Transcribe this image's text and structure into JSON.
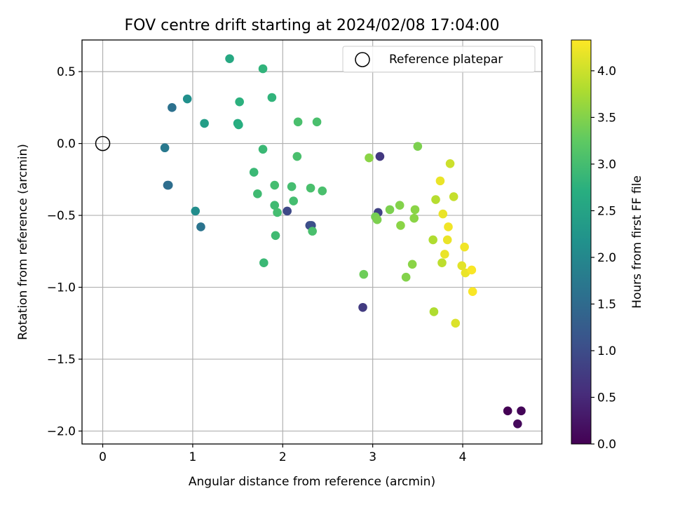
{
  "chart_data": {
    "type": "scatter",
    "title": "FOV centre drift starting at 2024/02/08 17:04:00",
    "xlabel": "Angular distance from reference (arcmin)",
    "ylabel": "Rotation from reference (arcmin)",
    "xlim": [
      -0.23,
      4.88
    ],
    "ylim": [
      -2.09,
      0.72
    ],
    "xticks": [
      0,
      1,
      2,
      3,
      4
    ],
    "xtick_labels": [
      "0",
      "1",
      "2",
      "3",
      "4"
    ],
    "yticks": [
      0.5,
      0.0,
      -0.5,
      -1.0,
      -1.5,
      -2.0
    ],
    "ytick_labels": [
      "0.5",
      "0.0",
      "−0.5",
      "−1.0",
      "−1.5",
      "−2.0"
    ],
    "grid": true,
    "legend": {
      "placement": "top-right",
      "entries": [
        {
          "label": "Reference platepar",
          "marker": "open-circle"
        }
      ]
    },
    "reference_point": {
      "x": 0,
      "y": 0
    },
    "colorbar": {
      "label": "Hours from first FF file",
      "colormap": "viridis",
      "range": [
        0,
        4.33
      ],
      "ticks": [
        0.0,
        0.5,
        1.0,
        1.5,
        2.0,
        2.5,
        3.0,
        3.5,
        4.0
      ],
      "tick_labels": [
        "0.0",
        "0.5",
        "1.0",
        "1.5",
        "2.0",
        "2.5",
        "3.0",
        "3.5",
        "4.0"
      ]
    },
    "points": [
      {
        "x": 4.5,
        "y": -1.86,
        "c": 0.0
      },
      {
        "x": 4.65,
        "y": -1.86,
        "c": 0.05
      },
      {
        "x": 4.61,
        "y": -1.95,
        "c": 0.1
      },
      {
        "x": 3.08,
        "y": -0.09,
        "c": 0.7
      },
      {
        "x": 2.89,
        "y": -1.14,
        "c": 0.75
      },
      {
        "x": 3.06,
        "y": -0.48,
        "c": 0.85
      },
      {
        "x": 2.05,
        "y": -0.47,
        "c": 0.95
      },
      {
        "x": 2.3,
        "y": -0.57,
        "c": 1.0
      },
      {
        "x": 2.32,
        "y": -0.57,
        "c": 1.05
      },
      {
        "x": 0.72,
        "y": -0.29,
        "c": 1.5
      },
      {
        "x": 0.73,
        "y": -0.29,
        "c": 1.55
      },
      {
        "x": 0.77,
        "y": 0.25,
        "c": 1.6
      },
      {
        "x": 1.09,
        "y": -0.58,
        "c": 1.65
      },
      {
        "x": 0.69,
        "y": -0.03,
        "c": 1.75
      },
      {
        "x": 1.03,
        "y": -0.47,
        "c": 2.1
      },
      {
        "x": 0.94,
        "y": 0.31,
        "c": 2.15
      },
      {
        "x": 1.13,
        "y": 0.14,
        "c": 2.4
      },
      {
        "x": 1.41,
        "y": 0.59,
        "c": 2.6
      },
      {
        "x": 1.5,
        "y": 0.14,
        "c": 2.65
      },
      {
        "x": 1.51,
        "y": 0.13,
        "c": 2.7
      },
      {
        "x": 1.52,
        "y": 0.29,
        "c": 2.75
      },
      {
        "x": 1.78,
        "y": 0.52,
        "c": 2.8
      },
      {
        "x": 1.88,
        "y": 0.32,
        "c": 2.8
      },
      {
        "x": 1.78,
        "y": -0.04,
        "c": 2.9
      },
      {
        "x": 1.68,
        "y": -0.2,
        "c": 2.9
      },
      {
        "x": 1.72,
        "y": -0.35,
        "c": 2.95
      },
      {
        "x": 1.79,
        "y": -0.83,
        "c": 2.9
      },
      {
        "x": 1.91,
        "y": -0.43,
        "c": 2.95
      },
      {
        "x": 1.92,
        "y": -0.64,
        "c": 2.95
      },
      {
        "x": 1.91,
        "y": -0.29,
        "c": 3.0
      },
      {
        "x": 1.94,
        "y": -0.48,
        "c": 3.0
      },
      {
        "x": 2.1,
        "y": -0.3,
        "c": 3.0
      },
      {
        "x": 2.12,
        "y": -0.4,
        "c": 3.0
      },
      {
        "x": 2.16,
        "y": -0.09,
        "c": 3.05
      },
      {
        "x": 2.17,
        "y": 0.15,
        "c": 3.05
      },
      {
        "x": 2.31,
        "y": -0.31,
        "c": 3.05
      },
      {
        "x": 2.33,
        "y": -0.61,
        "c": 3.05
      },
      {
        "x": 2.38,
        "y": 0.15,
        "c": 3.05
      },
      {
        "x": 2.44,
        "y": -0.33,
        "c": 3.05
      },
      {
        "x": 2.9,
        "y": -0.91,
        "c": 3.35
      },
      {
        "x": 2.96,
        "y": -0.1,
        "c": 3.55
      },
      {
        "x": 3.03,
        "y": -0.51,
        "c": 3.4
      },
      {
        "x": 3.05,
        "y": -0.53,
        "c": 3.45
      },
      {
        "x": 3.19,
        "y": -0.46,
        "c": 3.45
      },
      {
        "x": 3.3,
        "y": -0.43,
        "c": 3.5
      },
      {
        "x": 3.31,
        "y": -0.57,
        "c": 3.55
      },
      {
        "x": 3.37,
        "y": -0.93,
        "c": 3.5
      },
      {
        "x": 3.44,
        "y": -0.84,
        "c": 3.55
      },
      {
        "x": 3.46,
        "y": -0.52,
        "c": 3.55
      },
      {
        "x": 3.47,
        "y": -0.46,
        "c": 3.55
      },
      {
        "x": 3.5,
        "y": -0.02,
        "c": 3.45
      },
      {
        "x": 3.67,
        "y": -0.67,
        "c": 3.8
      },
      {
        "x": 3.68,
        "y": -1.17,
        "c": 3.8
      },
      {
        "x": 3.7,
        "y": -0.39,
        "c": 3.85
      },
      {
        "x": 3.75,
        "y": -0.26,
        "c": 4.2
      },
      {
        "x": 3.77,
        "y": -0.83,
        "c": 3.9
      },
      {
        "x": 3.78,
        "y": -0.49,
        "c": 4.2
      },
      {
        "x": 3.8,
        "y": -0.77,
        "c": 4.2
      },
      {
        "x": 3.83,
        "y": -0.67,
        "c": 4.2
      },
      {
        "x": 3.84,
        "y": -0.58,
        "c": 4.25
      },
      {
        "x": 3.86,
        "y": -0.14,
        "c": 4.0
      },
      {
        "x": 3.9,
        "y": -0.37,
        "c": 3.95
      },
      {
        "x": 3.92,
        "y": -1.25,
        "c": 4.1
      },
      {
        "x": 3.99,
        "y": -0.85,
        "c": 4.15
      },
      {
        "x": 4.02,
        "y": -0.72,
        "c": 4.25
      },
      {
        "x": 4.03,
        "y": -0.9,
        "c": 4.2
      },
      {
        "x": 4.1,
        "y": -0.88,
        "c": 4.3
      },
      {
        "x": 4.11,
        "y": -1.03,
        "c": 4.3
      }
    ]
  }
}
